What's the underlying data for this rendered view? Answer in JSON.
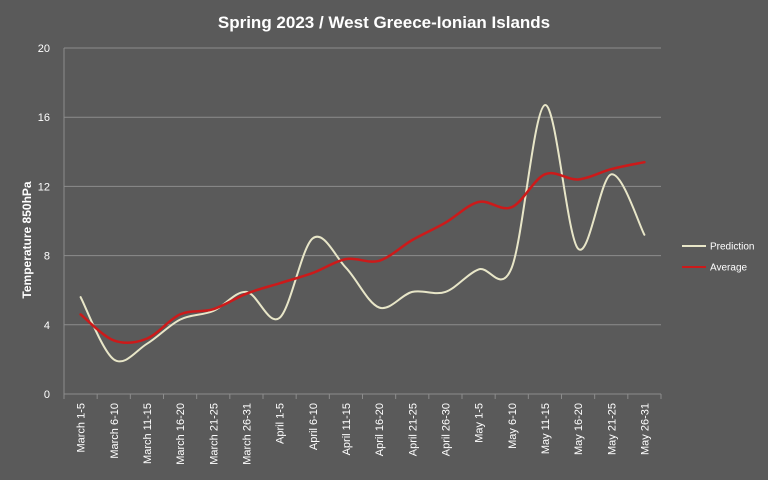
{
  "chart_data": {
    "type": "line",
    "title": "Spring 2023 / West Greece-Ionian Islands",
    "xlabel": "",
    "ylabel": "Temperature 850hPa",
    "ylim": [
      0,
      20
    ],
    "yticks": [
      0,
      4,
      8,
      12,
      16,
      20
    ],
    "grid": true,
    "legend_position": "right",
    "categories": [
      "March 1-5",
      "March 6-10",
      "March 11-15",
      "March 16-20",
      "March 21-25",
      "March 26-31",
      "April 1-5",
      "April 6-10",
      "April 11-15",
      "April 16-20",
      "April 21-25",
      "April 26-30",
      "May 1-5",
      "May 6-10",
      "May 11-15",
      "May 16-20",
      "May 21-25",
      "May 26-31"
    ],
    "series": [
      {
        "name": "Prediction",
        "color": "#e8e6c8",
        "values": [
          5.6,
          2.0,
          2.9,
          4.3,
          4.8,
          5.9,
          4.4,
          9.0,
          7.3,
          5.0,
          5.9,
          5.9,
          7.2,
          7.3,
          16.7,
          8.4,
          12.7,
          9.2
        ]
      },
      {
        "name": "Average",
        "color": "#cc1a1a",
        "values": [
          4.6,
          3.1,
          3.2,
          4.6,
          4.9,
          5.8,
          6.4,
          7.0,
          7.8,
          7.7,
          8.9,
          9.9,
          11.1,
          10.8,
          12.7,
          12.4,
          13.0,
          13.4
        ]
      }
    ]
  }
}
